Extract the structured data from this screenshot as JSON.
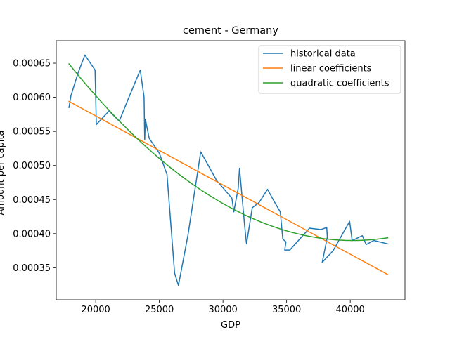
{
  "chart_data": {
    "type": "line",
    "title": "cement - Germany",
    "xlabel": "GDP",
    "ylabel": "Amount per capita",
    "xlim": [
      16900,
      44300
    ],
    "ylim": [
      0.000303,
      0.000683
    ],
    "x_ticks": [
      20000,
      25000,
      30000,
      35000,
      40000
    ],
    "x_tick_labels": [
      "20000",
      "25000",
      "30000",
      "35000",
      "40000"
    ],
    "y_ticks": [
      0.00035,
      0.0004,
      0.00045,
      0.0005,
      0.00055,
      0.0006,
      0.00065
    ],
    "y_tick_labels": [
      "0.00035",
      "0.00040",
      "0.00045",
      "0.00050",
      "0.00055",
      "0.00060",
      "0.00065"
    ],
    "legend_position": "upper right",
    "grid": false,
    "series": [
      {
        "name": "historical data",
        "color": "#1f77b4",
        "points": [
          [
            17900,
            0.000585
          ],
          [
            18050,
            0.000602
          ],
          [
            18600,
            0.000635
          ],
          [
            19150,
            0.000662
          ],
          [
            19950,
            0.00064
          ],
          [
            20050,
            0.00056
          ],
          [
            20650,
            0.000572
          ],
          [
            21050,
            0.00058
          ],
          [
            21850,
            0.000565
          ],
          [
            22500,
            0.000595
          ],
          [
            23500,
            0.00064
          ],
          [
            23800,
            0.0006
          ],
          [
            23850,
            0.000538
          ],
          [
            23900,
            0.000568
          ],
          [
            24200,
            0.00054
          ],
          [
            25000,
            0.000518
          ],
          [
            25600,
            0.000487
          ],
          [
            26200,
            0.000342
          ],
          [
            26500,
            0.000324
          ],
          [
            27250,
            0.000398
          ],
          [
            28250,
            0.00052
          ],
          [
            28700,
            0.000505
          ],
          [
            29500,
            0.000478
          ],
          [
            30700,
            0.000452
          ],
          [
            30850,
            0.000432
          ],
          [
            31200,
            0.000467
          ],
          [
            31300,
            0.000496
          ],
          [
            31700,
            0.000412
          ],
          [
            31850,
            0.000385
          ],
          [
            32300,
            0.000438
          ],
          [
            32850,
            0.000446
          ],
          [
            33500,
            0.000465
          ],
          [
            34000,
            0.000448
          ],
          [
            34500,
            0.000432
          ],
          [
            34700,
            0.000392
          ],
          [
            34950,
            0.000388
          ],
          [
            34850,
            0.000376
          ],
          [
            35250,
            0.000376
          ],
          [
            36800,
            0.000408
          ],
          [
            37700,
            0.000406
          ],
          [
            38150,
            0.000409
          ],
          [
            38200,
            0.000395
          ],
          [
            37800,
            0.000358
          ],
          [
            38650,
            0.000375
          ],
          [
            39950,
            0.000418
          ],
          [
            40150,
            0.00039
          ],
          [
            40950,
            0.000397
          ],
          [
            41250,
            0.000384
          ],
          [
            41850,
            0.00039
          ],
          [
            42950,
            0.000385
          ]
        ]
      },
      {
        "name": "linear coefficients",
        "color": "#ff7f0e",
        "points": [
          [
            17900,
            0.000594
          ],
          [
            42950,
            0.00034
          ]
        ]
      },
      {
        "name": "quadratic coefficients",
        "color": "#2ca02c",
        "quadratic": {
          "x_range": [
            17900,
            42950
          ],
          "vertex_x": 40200,
          "vertex_y": 0.00039,
          "at_x_min": 0.000649
        }
      }
    ]
  }
}
